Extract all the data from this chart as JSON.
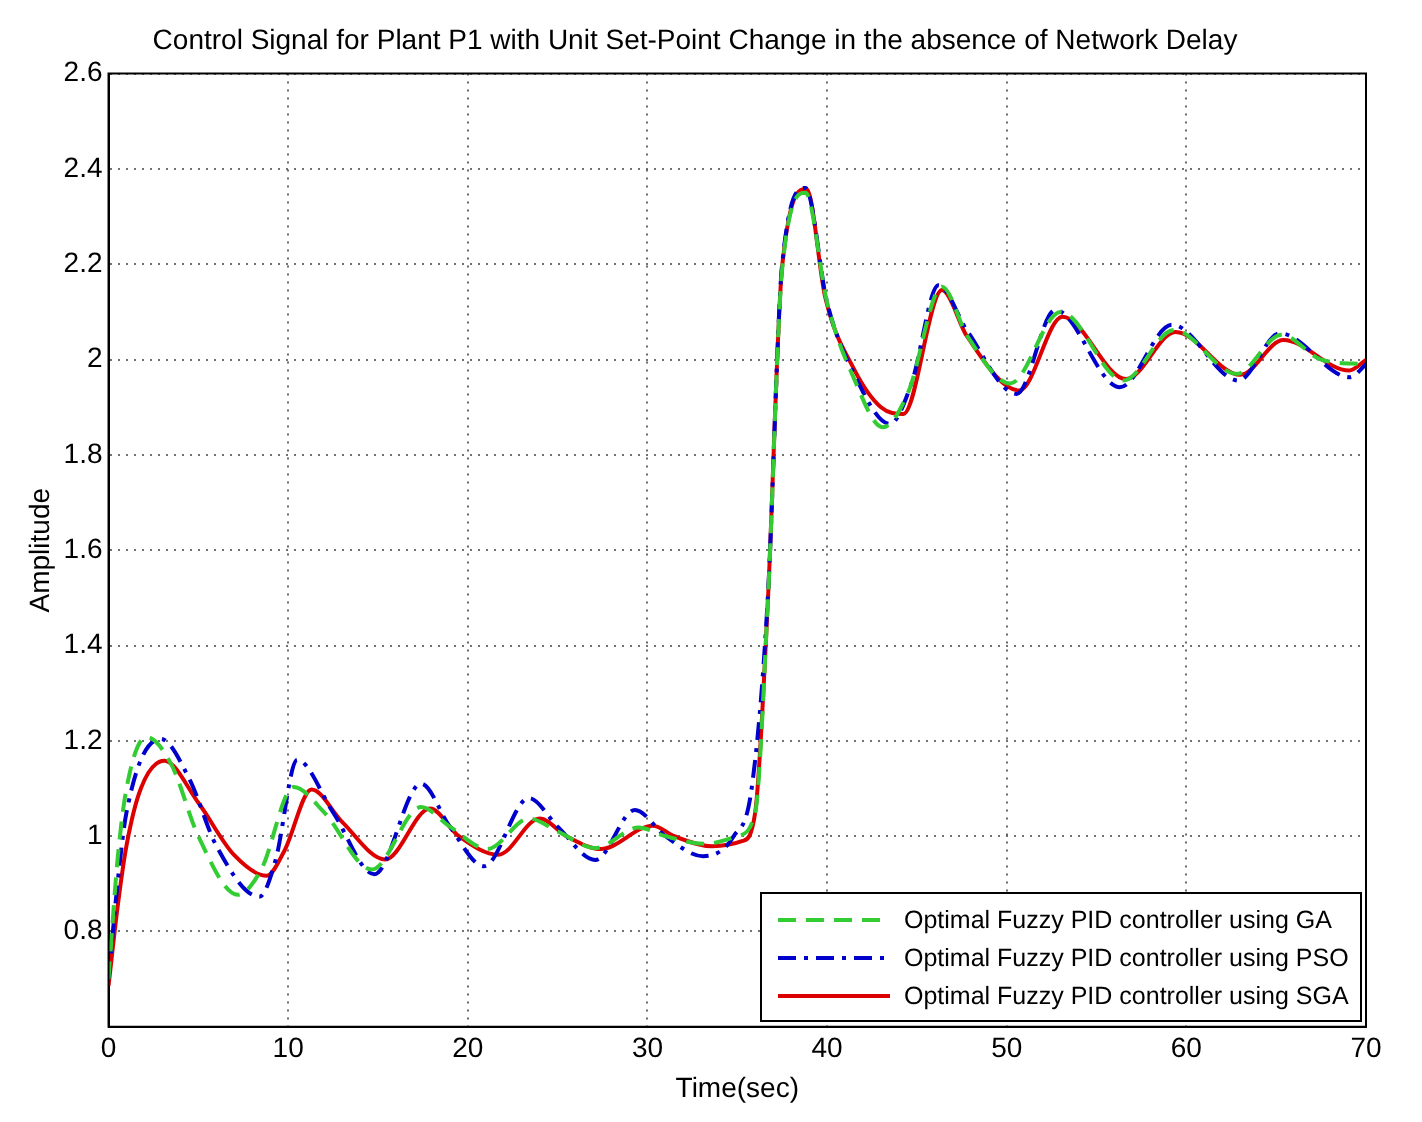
{
  "chart_data": {
    "type": "line",
    "title": "Control Signal for Plant P1 with Unit Set-Point Change in the absence of Network Delay",
    "xlabel": "Time(sec)",
    "ylabel": "Amplitude",
    "xlim": [
      0,
      70
    ],
    "xticks": [
      0,
      10,
      20,
      30,
      40,
      50,
      60,
      70
    ],
    "ylim": [
      0.6,
      2.6
    ],
    "yticks": [
      {
        "value": 0.6,
        "label": null
      },
      0.8,
      1,
      1.2,
      1.4,
      1.6,
      1.8,
      2,
      2.2,
      2.4,
      2.6
    ],
    "grid": true,
    "legend": "bottom right",
    "marker": "none",
    "series": [
      {
        "name": "Optimal Fuzzy PID controller using GA",
        "color": "#33cc33",
        "line_style": "dashed",
        "x": [
          0,
          0.5,
          1,
          2.1,
          3.5,
          5,
          7.2,
          8.5,
          10.3,
          12,
          14.65,
          17.4,
          19,
          21.1,
          23.4,
          25,
          27.1,
          29.5,
          31,
          33.2,
          35,
          36,
          36.7,
          37.5,
          38.8,
          40,
          41.5,
          43.1,
          44.5,
          46.4,
          47.8,
          50.2,
          53,
          56.5,
          59.3,
          62.8,
          65.3,
          67.5,
          70
        ],
        "values": [
          0.7,
          0.95,
          1.1,
          1.208,
          1.15,
          1.0,
          0.877,
          0.93,
          1.103,
          1.05,
          0.93,
          1.061,
          1.02,
          0.973,
          1.037,
          1.01,
          0.975,
          1.018,
          1.0,
          0.984,
          1.0,
          1.05,
          1.49,
          2.19,
          2.35,
          2.12,
          1.96,
          1.858,
          1.93,
          2.153,
          2.05,
          1.95,
          2.1,
          1.956,
          2.062,
          1.97,
          2.052,
          2.0,
          1.99
        ]
      },
      {
        "name": "Optimal Fuzzy PID controller using PSO",
        "color": "#0000cc",
        "line_style": "dashdot",
        "x": [
          0,
          0.5,
          1,
          2.9,
          4.5,
          6,
          8.4,
          9.3,
          10.5,
          12.5,
          14.8,
          17.4,
          19,
          20.9,
          23.4,
          25,
          27.1,
          29.3,
          31,
          33.1,
          34.8,
          35.8,
          36.7,
          37.5,
          38.8,
          40,
          41.5,
          43.5,
          44.7,
          46.2,
          47.8,
          50.55,
          52.7,
          56.3,
          59.2,
          62.9,
          65.2,
          69.1,
          70
        ],
        "values": [
          0.7,
          0.9,
          1.05,
          1.204,
          1.12,
          0.98,
          0.873,
          0.95,
          1.16,
          1.05,
          0.92,
          1.11,
          1.02,
          0.937,
          1.08,
          1.02,
          0.95,
          1.055,
          1.0,
          0.958,
          1.0,
          1.1,
          1.5,
          2.2,
          2.36,
          2.12,
          1.97,
          1.865,
          1.95,
          2.156,
          2.06,
          1.928,
          2.104,
          1.942,
          2.073,
          1.956,
          2.055,
          1.963,
          1.99
        ]
      },
      {
        "name": "Optimal Fuzzy PID controller using SGA",
        "color": "#dd0000",
        "line_style": "solid",
        "x": [
          0,
          0.5,
          1,
          1.8,
          3.1,
          5,
          7,
          8.8,
          9.8,
          11.3,
          13,
          15.4,
          17.9,
          19.5,
          21.7,
          24,
          25.5,
          27.4,
          30.3,
          31.5,
          33.6,
          35.3,
          36,
          36.7,
          37.5,
          38.86,
          39.9,
          41.5,
          43,
          44.25,
          46.4,
          47.8,
          50.7,
          53.1,
          56.65,
          59.4,
          63,
          65.4,
          69.06,
          70
        ],
        "values": [
          0.686,
          0.85,
          0.98,
          1.1,
          1.158,
          1.07,
          0.96,
          0.917,
          0.97,
          1.098,
          1.03,
          0.951,
          1.058,
          1.0,
          0.961,
          1.037,
          1.0,
          0.973,
          1.022,
          1.0,
          0.979,
          0.99,
          1.05,
          1.49,
          2.196,
          2.358,
          2.13,
          1.98,
          1.9,
          1.886,
          2.146,
          2.048,
          1.935,
          2.09,
          1.959,
          2.058,
          1.968,
          2.041,
          1.977,
          1.999
        ]
      }
    ]
  }
}
